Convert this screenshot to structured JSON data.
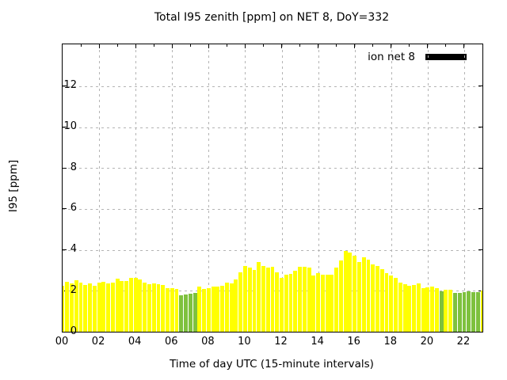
{
  "chart_data": {
    "type": "bar",
    "title": "Total I95 zenith [ppm] on NET 8, DoY=332",
    "xlabel": "Time of day UTC (15-minute intervals)",
    "ylabel": "I95 [ppm]",
    "legend": {
      "label": "ion net 8",
      "swatch_color": "#000000",
      "position": "top-right-inside"
    },
    "grid": true,
    "bar_interval_minutes": 15,
    "x_domain_hours": [
      0,
      23
    ],
    "ylim": [
      0,
      14.05
    ],
    "yticks": [
      0,
      2,
      4,
      6,
      8,
      10,
      12
    ],
    "xtick_hours": [
      0,
      2,
      4,
      6,
      8,
      10,
      12,
      14,
      16,
      18,
      20,
      22
    ],
    "xtick_labels": [
      "00",
      "02",
      "04",
      "06",
      "08",
      "10",
      "12",
      "14",
      "16",
      "18",
      "20",
      "22"
    ],
    "minor_xtick_hours": [
      1,
      3,
      5,
      7,
      9,
      11,
      13,
      15,
      17,
      19,
      21
    ],
    "colors": {
      "yellow_bar": "#ffff00",
      "green_bar": "#7ec13e"
    },
    "series": [
      {
        "name": "ion net 8",
        "times": [
          "00:00",
          "00:15",
          "00:30",
          "00:45",
          "01:00",
          "01:15",
          "01:30",
          "01:45",
          "02:00",
          "02:15",
          "02:30",
          "02:45",
          "03:00",
          "03:15",
          "03:30",
          "03:45",
          "04:00",
          "04:15",
          "04:30",
          "04:45",
          "05:00",
          "05:15",
          "05:30",
          "05:45",
          "06:00",
          "06:15",
          "06:30",
          "06:45",
          "07:00",
          "07:15",
          "07:30",
          "07:45",
          "08:00",
          "08:15",
          "08:30",
          "08:45",
          "09:00",
          "09:15",
          "09:30",
          "09:45",
          "10:00",
          "10:15",
          "10:30",
          "10:45",
          "11:00",
          "11:15",
          "11:30",
          "11:45",
          "12:00",
          "12:15",
          "12:30",
          "12:45",
          "13:00",
          "13:15",
          "13:30",
          "13:45",
          "14:00",
          "14:15",
          "14:30",
          "14:45",
          "15:00",
          "15:15",
          "15:30",
          "15:45",
          "16:00",
          "16:15",
          "16:30",
          "16:45",
          "17:00",
          "17:15",
          "17:30",
          "17:45",
          "18:00",
          "18:15",
          "18:30",
          "18:45",
          "19:00",
          "19:15",
          "19:30",
          "19:45",
          "20:00",
          "20:15",
          "20:30",
          "20:45",
          "21:00",
          "21:15",
          "21:30",
          "21:45",
          "22:00",
          "22:15",
          "22:30",
          "22:45",
          "23:00"
        ],
        "values": [
          2.25,
          2.45,
          2.36,
          2.52,
          2.39,
          2.3,
          2.36,
          2.25,
          2.39,
          2.45,
          2.37,
          2.39,
          2.58,
          2.48,
          2.48,
          2.62,
          2.65,
          2.54,
          2.39,
          2.33,
          2.35,
          2.34,
          2.3,
          2.14,
          2.14,
          2.1,
          1.8,
          1.83,
          1.86,
          1.9,
          2.19,
          2.1,
          2.12,
          2.22,
          2.22,
          2.25,
          2.39,
          2.36,
          2.57,
          2.9,
          3.2,
          3.14,
          3.01,
          3.42,
          3.23,
          3.14,
          3.16,
          2.89,
          2.62,
          2.8,
          2.84,
          3.0,
          3.16,
          3.16,
          3.12,
          2.74,
          2.88,
          2.8,
          2.8,
          2.8,
          3.12,
          3.5,
          3.95,
          3.87,
          3.72,
          3.4,
          3.62,
          3.52,
          3.3,
          3.23,
          3.06,
          2.86,
          2.76,
          2.62,
          2.4,
          2.31,
          2.25,
          2.28,
          2.36,
          2.12,
          2.16,
          2.22,
          2.13,
          1.97,
          2.04,
          2.05,
          1.91,
          1.91,
          1.94,
          1.97,
          1.94,
          1.95,
          2.0
        ],
        "bar_colors": [
          "Y",
          "Y",
          "Y",
          "Y",
          "Y",
          "Y",
          "Y",
          "Y",
          "Y",
          "Y",
          "Y",
          "Y",
          "Y",
          "Y",
          "Y",
          "Y",
          "Y",
          "Y",
          "Y",
          "Y",
          "Y",
          "Y",
          "Y",
          "Y",
          "Y",
          "Y",
          "G",
          "G",
          "G",
          "G",
          "Y",
          "Y",
          "Y",
          "Y",
          "Y",
          "Y",
          "Y",
          "Y",
          "Y",
          "Y",
          "Y",
          "Y",
          "Y",
          "Y",
          "Y",
          "Y",
          "Y",
          "Y",
          "Y",
          "Y",
          "Y",
          "Y",
          "Y",
          "Y",
          "Y",
          "Y",
          "Y",
          "Y",
          "Y",
          "Y",
          "Y",
          "Y",
          "Y",
          "Y",
          "Y",
          "Y",
          "Y",
          "Y",
          "Y",
          "Y",
          "Y",
          "Y",
          "Y",
          "Y",
          "Y",
          "Y",
          "Y",
          "Y",
          "Y",
          "Y",
          "Y",
          "Y",
          "Y",
          "G",
          "Y",
          "Y",
          "G",
          "G",
          "G",
          "G",
          "G",
          "G",
          "Y"
        ]
      }
    ]
  }
}
